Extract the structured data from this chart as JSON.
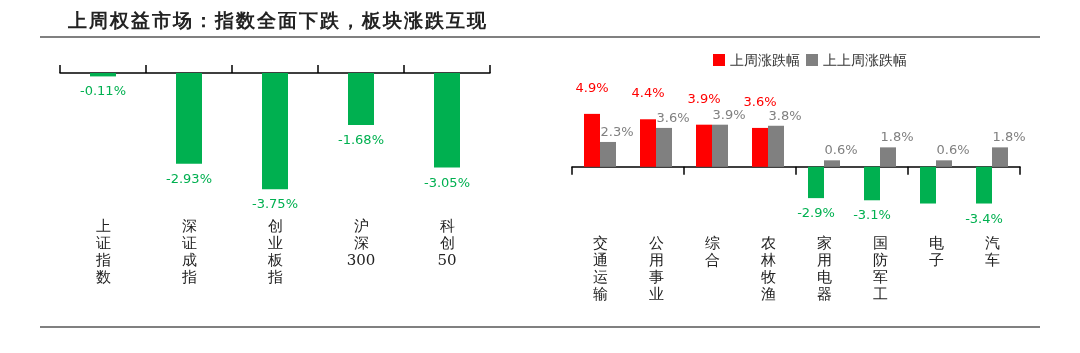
{
  "chart_data": [
    {
      "type": "bar",
      "title": "上周权益市场：指数全面下跌，板块涨跌互现",
      "categories": [
        "上证指数",
        "深证成指",
        "创业板指",
        "沪深300",
        "科创50"
      ],
      "color": "#00b050",
      "values": [
        -0.11,
        -2.93,
        -3.75,
        -1.68,
        -3.05
      ],
      "value_labels": [
        "-0.11%",
        "-2.93%",
        "-3.75%",
        "-1.68%",
        "-3.05%"
      ]
    },
    {
      "type": "bar",
      "categories": [
        "交通运输",
        "公用事业",
        "综合",
        "农林牧渔",
        "家用电器",
        "国防军工",
        "电子",
        "汽车"
      ],
      "legend": "top",
      "series": [
        {
          "name": "上周涨跌幅",
          "color": "#ff0000",
          "colors": [
            "#ff0000",
            "#ff0000",
            "#ff0000",
            "#ff0000",
            "#00b050",
            "#00b050",
            "#00b050",
            "#00b050"
          ],
          "values": [
            4.9,
            4.4,
            3.9,
            3.6,
            -2.9,
            -3.1,
            -3.4,
            -3.4
          ],
          "value_labels": [
            "4.9%",
            "4.4%",
            "3.9%",
            "3.6%",
            "-2.9%",
            "-3.1%",
            null,
            "-3.4%"
          ]
        },
        {
          "name": "上上周涨跌幅",
          "color": "#808080",
          "values": [
            2.3,
            3.6,
            3.9,
            3.8,
            0.6,
            1.8,
            0.6,
            1.8
          ],
          "value_labels": [
            "2.3%",
            "3.6%",
            "3.9%",
            "3.8%",
            "0.6%",
            "1.8%",
            "0.6%",
            "1.8%"
          ]
        }
      ]
    }
  ]
}
